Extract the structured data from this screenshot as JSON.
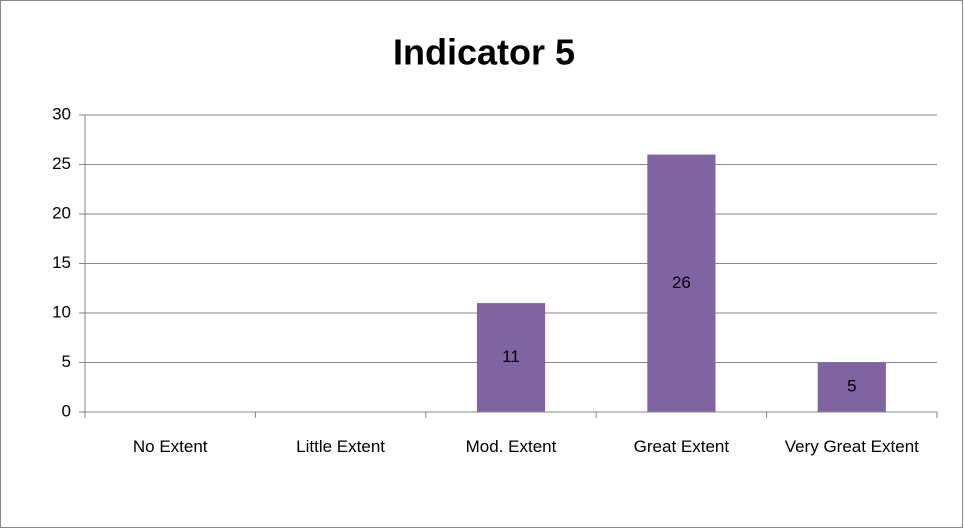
{
  "chart_data": {
    "type": "bar",
    "title": "Indicator 5",
    "categories": [
      "No Extent",
      "Little Extent",
      "Mod. Extent",
      "Great Extent",
      "Very Great Extent"
    ],
    "values": [
      0,
      0,
      11,
      26,
      5
    ],
    "color": "#8064a2",
    "ylim": [
      0,
      30
    ],
    "yticks": [
      0,
      5,
      10,
      15,
      20,
      25,
      30
    ],
    "grid": true
  }
}
